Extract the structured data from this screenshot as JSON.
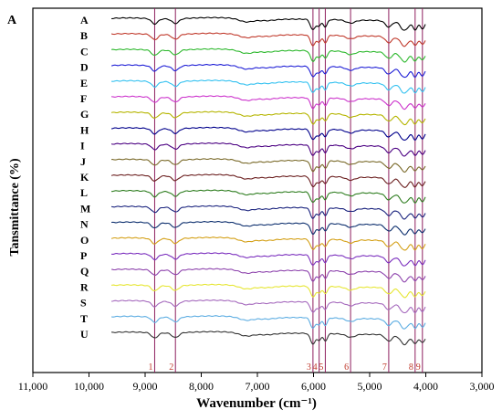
{
  "panel_label": "A",
  "chart_data": {
    "type": "line",
    "title": "",
    "xlabel": "Wavenumber (cm⁻¹)",
    "ylabel": "Tansmittance (%)",
    "xlim": [
      11000,
      3000
    ],
    "x_reversed": true,
    "x_ticks": [
      11000,
      10000,
      9000,
      8000,
      7000,
      6000,
      5000,
      4000,
      3000
    ],
    "x_tick_labels": [
      "11,000",
      "10,000",
      "9,000",
      "8,000",
      "7,000",
      "6,000",
      "5,000",
      "4,000",
      "3,000"
    ],
    "grid": false,
    "legend": "none",
    "series": [
      {
        "name": "A",
        "color": "#000000"
      },
      {
        "name": "B",
        "color": "#c0392b"
      },
      {
        "name": "C",
        "color": "#2db82d"
      },
      {
        "name": "D",
        "color": "#1f1fd6"
      },
      {
        "name": "E",
        "color": "#33c1f0"
      },
      {
        "name": "F",
        "color": "#cc33cc"
      },
      {
        "name": "G",
        "color": "#b5b500"
      },
      {
        "name": "H",
        "color": "#00008b"
      },
      {
        "name": "I",
        "color": "#4b0082"
      },
      {
        "name": "J",
        "color": "#7a6a2a"
      },
      {
        "name": "K",
        "color": "#6b1f1f"
      },
      {
        "name": "L",
        "color": "#2e7d1f"
      },
      {
        "name": "M",
        "color": "#1a237e"
      },
      {
        "name": "N",
        "color": "#0d2f6e"
      },
      {
        "name": "O",
        "color": "#d4a017"
      },
      {
        "name": "P",
        "color": "#7b2fbe"
      },
      {
        "name": "Q",
        "color": "#8e44ad"
      },
      {
        "name": "R",
        "color": "#e6e633"
      },
      {
        "name": "S",
        "color": "#a569bd"
      },
      {
        "name": "T",
        "color": "#5dade2"
      },
      {
        "name": "U",
        "color": "#333333"
      }
    ],
    "marker_lines": [
      {
        "label": "1",
        "x": 8830
      },
      {
        "label": "2",
        "x": 8460
      },
      {
        "label": "3",
        "x": 6010
      },
      {
        "label": "4",
        "x": 5900
      },
      {
        "label": "5",
        "x": 5790
      },
      {
        "label": "6",
        "x": 5340
      },
      {
        "label": "7",
        "x": 4660
      },
      {
        "label": "8",
        "x": 4190
      },
      {
        "label": "9",
        "x": 4060
      }
    ],
    "marker_label_color": "#c0392b",
    "marker_line_color": "#8e1f5e"
  }
}
